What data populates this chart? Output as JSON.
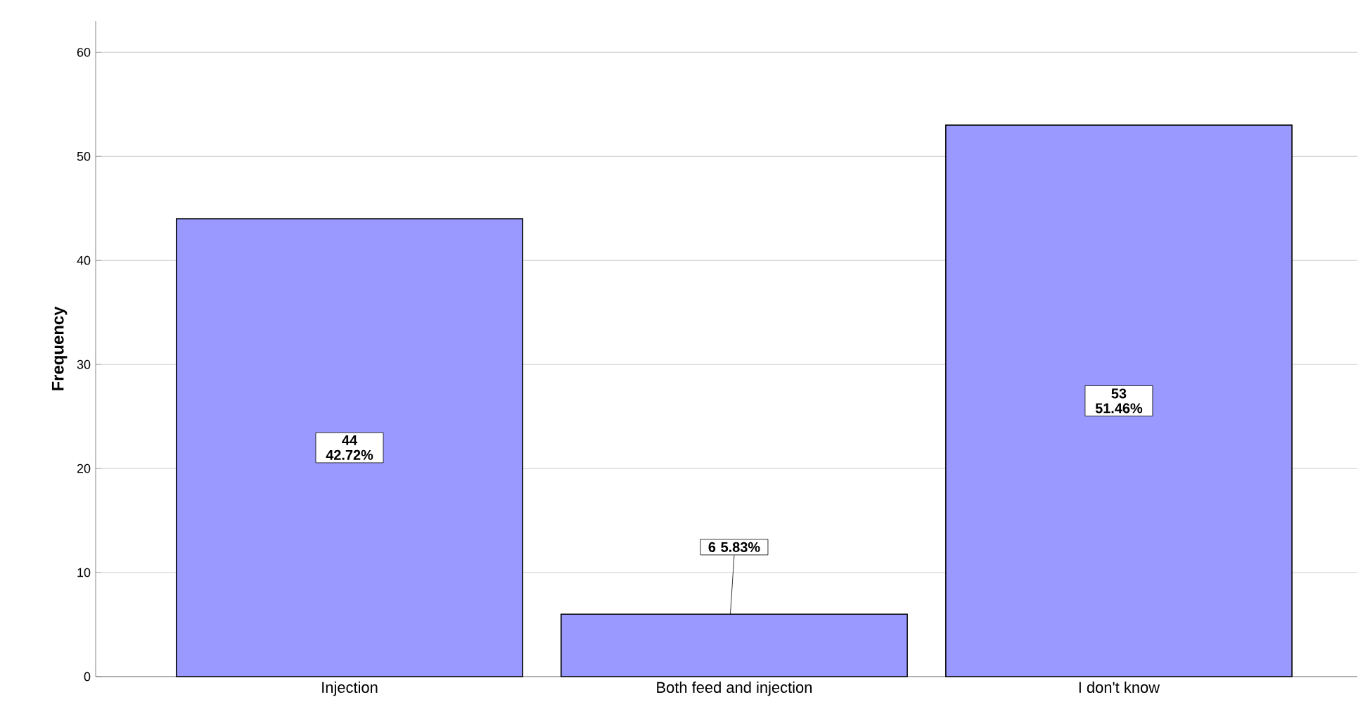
{
  "chart_data": {
    "type": "bar",
    "ylabel": "Frequency",
    "categories": [
      "Injection",
      "Both feed and injection",
      "I don't know"
    ],
    "values": [
      44,
      6,
      53
    ],
    "color": "#9999ff",
    "value_labels": [
      "44 42.72%",
      "6 5.83%",
      "53 51.46%"
    ],
    "ylim": [
      0,
      63
    ],
    "yticks": [
      0,
      10,
      20,
      30,
      40,
      50,
      60
    ],
    "grid": "y"
  }
}
